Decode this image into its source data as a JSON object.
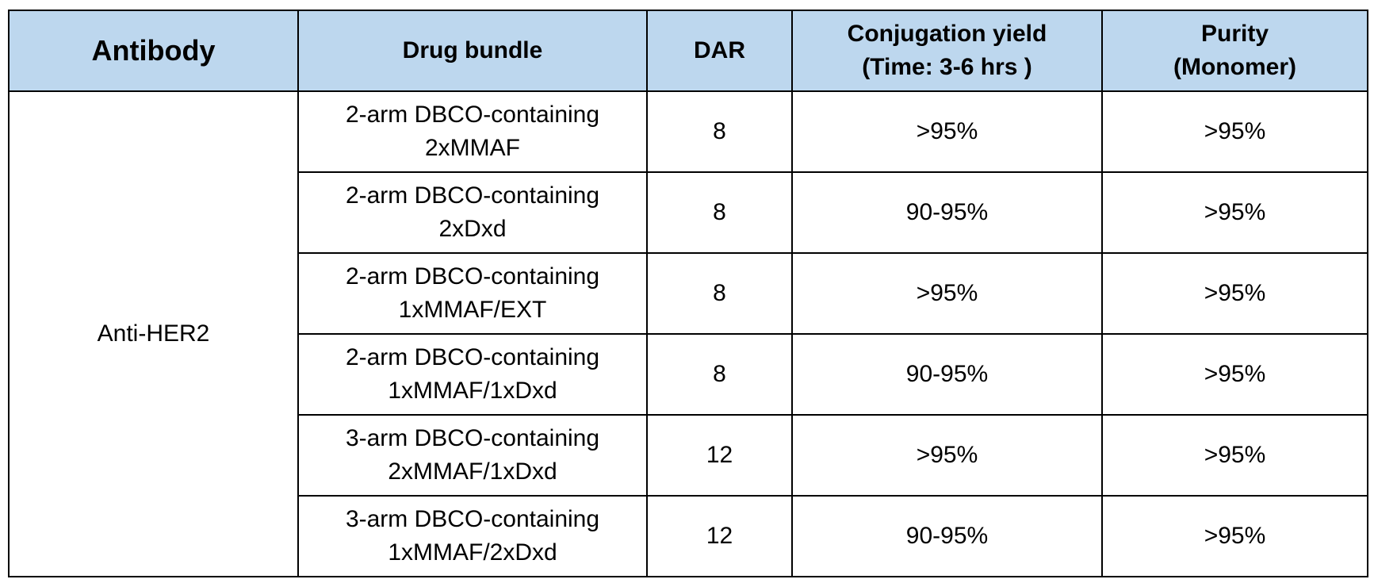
{
  "table": {
    "headers": {
      "antibody": "Antibody",
      "drug_bundle": "Drug bundle",
      "dar": "DAR",
      "conjugation_yield_line1": "Conjugation yield",
      "conjugation_yield_line2": "(Time: 3-6 hrs )",
      "purity_line1": "Purity",
      "purity_line2": "(Monomer)"
    },
    "antibody": "Anti-HER2",
    "rows": [
      {
        "drug_line1": "2-arm  DBCO-containing",
        "drug_line2": "2xMMAF",
        "dar": "8",
        "yield": ">95%",
        "purity": ">95%"
      },
      {
        "drug_line1": "2-arm  DBCO-containing",
        "drug_line2": "2xDxd",
        "dar": "8",
        "yield": "90-95%",
        "purity": ">95%"
      },
      {
        "drug_line1": "2-arm  DBCO-containing",
        "drug_line2": "1xMMAF/EXT",
        "dar": "8",
        "yield": ">95%",
        "purity": ">95%"
      },
      {
        "drug_line1": "2-arm  DBCO-containing",
        "drug_line2": "1xMMAF/1xDxd",
        "dar": "8",
        "yield": "90-95%",
        "purity": ">95%"
      },
      {
        "drug_line1": "3-arm  DBCO-containing",
        "drug_line2": "2xMMAF/1xDxd",
        "dar": "12",
        "yield": ">95%",
        "purity": ">95%"
      },
      {
        "drug_line1": "3-arm  DBCO-containing",
        "drug_line2": "1xMMAF/2xDxd",
        "dar": "12",
        "yield": "90-95%",
        "purity": ">95%"
      }
    ]
  },
  "colors": {
    "header_background": "#bdd7ee",
    "border": "#000000"
  }
}
